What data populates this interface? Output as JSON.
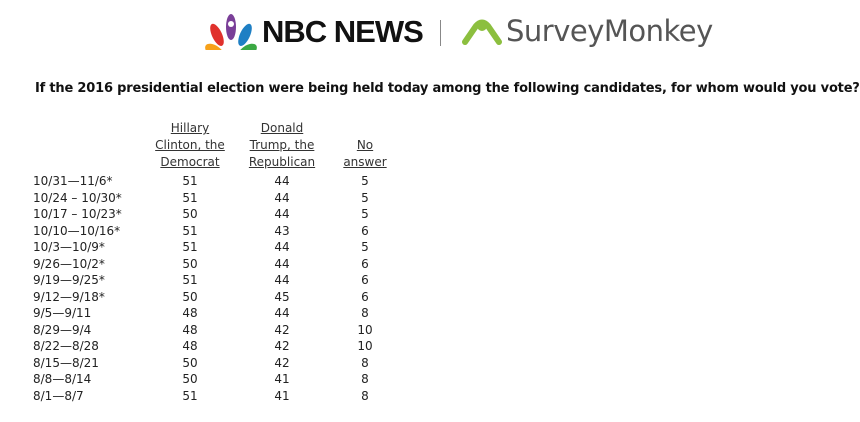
{
  "header": {
    "left_logo": "NBC NEWS",
    "right_logo": "SurveyMonkey"
  },
  "question": "If the 2016 presidential election were being held today among the following candidates, for whom would you vote?",
  "table": {
    "columns": [
      [
        "Hillary",
        "Clinton, the",
        "Democrat"
      ],
      [
        "Donald",
        "Trump, the",
        "Republican"
      ],
      [
        "No",
        "answer"
      ]
    ],
    "rows": [
      [
        "10/31—11/6*",
        51,
        44,
        5
      ],
      [
        "10/24 – 10/30*",
        51,
        44,
        5
      ],
      [
        "10/17 – 10/23*",
        50,
        44,
        5
      ],
      [
        "10/10—10/16*",
        51,
        43,
        6
      ],
      [
        "10/3—10/9*",
        51,
        44,
        5
      ],
      [
        "9/26—10/2*",
        50,
        44,
        6
      ],
      [
        "9/19—9/25*",
        51,
        44,
        6
      ],
      [
        "9/12—9/18*",
        50,
        45,
        6
      ],
      [
        "9/5—9/11",
        48,
        44,
        8
      ],
      [
        "8/29—9/4",
        48,
        42,
        10
      ],
      [
        "8/22—8/28",
        48,
        42,
        10
      ],
      [
        "8/15—8/21",
        50,
        42,
        8
      ],
      [
        "8/8—8/14",
        50,
        41,
        8
      ],
      [
        "8/1—8/7",
        51,
        41,
        8
      ]
    ]
  }
}
